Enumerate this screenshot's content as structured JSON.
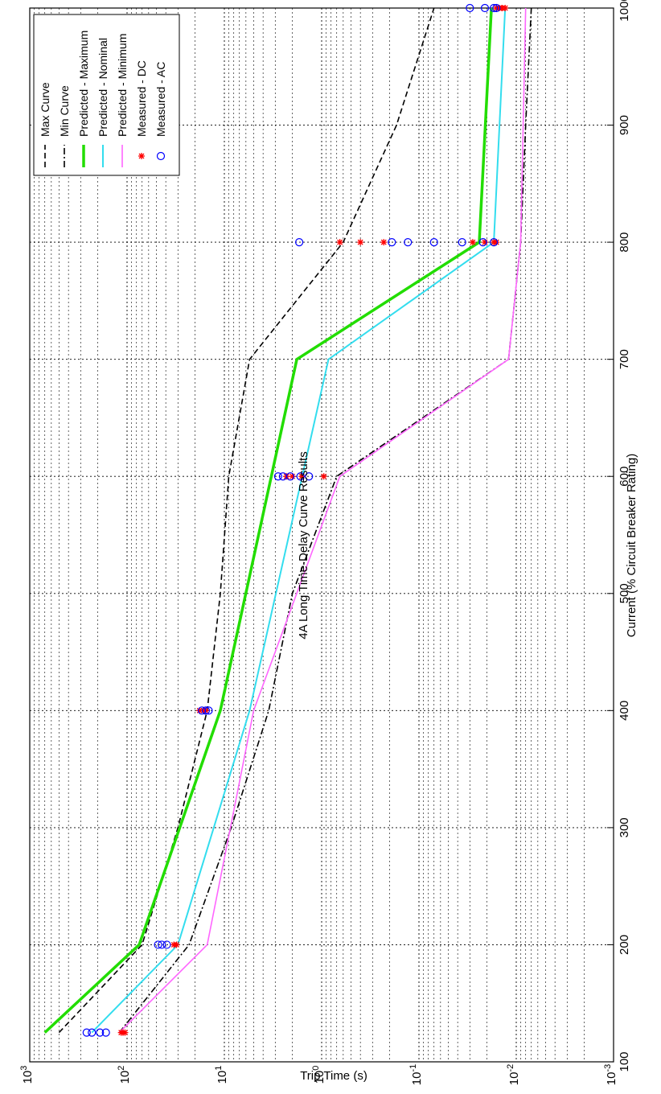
{
  "chart_data": {
    "type": "line",
    "title": "4A Long Time-Delay Curve Results",
    "xlabel": "Current (% Circuit Breaker Rating)",
    "ylabel": "Trip Time (s)",
    "xlim": [
      100,
      1000
    ],
    "ylim": [
      0.001,
      1000
    ],
    "yscale": "log",
    "x_ticks": [
      "100",
      "200",
      "300",
      "400",
      "500",
      "600",
      "700",
      "800",
      "900",
      "1000"
    ],
    "y_ticks": [
      {
        "base": "10",
        "exp": "3",
        "value": 1000
      },
      {
        "base": "10",
        "exp": "2",
        "value": 100
      },
      {
        "base": "10",
        "exp": "1",
        "value": 10
      },
      {
        "base": "10",
        "exp": "0",
        "value": 1
      },
      {
        "base": "10",
        "exp": "-1",
        "value": 0.1
      },
      {
        "base": "10",
        "exp": "-2",
        "value": 0.01
      },
      {
        "base": "10",
        "exp": "-3",
        "value": 0.001
      }
    ],
    "grid": true,
    "orientation": "rotated-90-counterclockwise",
    "legend_position": "top-left",
    "series": [
      {
        "name": "Max Curve",
        "style": "dashed",
        "color": "#000000",
        "x": [
          125,
          200,
          300,
          400,
          500,
          600,
          700,
          800,
          900,
          1000
        ],
        "y": [
          500,
          70,
          30,
          15,
          11,
          9,
          5.5,
          0.6,
          0.17,
          0.07
        ]
      },
      {
        "name": "Min Curve",
        "style": "dashdot",
        "color": "#000000",
        "x": [
          125,
          200,
          300,
          400,
          500,
          600,
          700,
          800,
          900,
          1000
        ],
        "y": [
          120,
          23,
          8.5,
          3.5,
          2.0,
          0.7,
          0.012,
          0.009,
          0.008,
          0.007
        ]
      },
      {
        "name": "Predicted - Maximum",
        "style": "solid",
        "color": "#22dd00",
        "x": [
          125,
          200,
          400,
          700,
          800,
          1000
        ],
        "y": [
          700,
          75,
          11,
          1.8,
          0.024,
          0.018
        ]
      },
      {
        "name": "Predicted - Nominal",
        "style": "solid",
        "color": "#33ddee",
        "x": [
          125,
          200,
          400,
          700,
          800,
          1000
        ],
        "y": [
          230,
          30,
          5.5,
          0.85,
          0.017,
          0.013
        ]
      },
      {
        "name": "Predicted - Minimum",
        "style": "solid",
        "color": "#ff66ff",
        "x": [
          125,
          200,
          400,
          600,
          700,
          800,
          1000
        ],
        "y": [
          120,
          15,
          5,
          0.65,
          0.012,
          0.009,
          0.008
        ]
      },
      {
        "name": "Measured - DC",
        "style": "marker-plus",
        "color": "#ff0000",
        "x": [
          125,
          125,
          125,
          200,
          200,
          400,
          400,
          400,
          600,
          600,
          600,
          600,
          800,
          800,
          800,
          800,
          800,
          800,
          800,
          1000,
          1000,
          1000,
          1000
        ],
        "y": [
          115,
          110,
          105,
          33,
          31,
          18,
          16.5,
          15.5,
          2.3,
          1.6,
          0.95,
          2.0,
          0.65,
          0.4,
          0.23,
          0.028,
          0.021,
          0.017,
          0.016,
          0.016,
          0.015,
          0.014,
          0.013
        ]
      },
      {
        "name": "Measured - AC",
        "style": "marker-circle",
        "color": "#0000ff",
        "x": [
          125,
          125,
          125,
          125,
          200,
          200,
          200,
          400,
          400,
          400,
          600,
          600,
          600,
          600,
          600,
          800,
          800,
          800,
          800,
          800,
          800,
          800,
          1000,
          1000,
          1000,
          1000
        ],
        "y": [
          260,
          230,
          190,
          165,
          48,
          44,
          39,
          17,
          15.5,
          14.5,
          2.8,
          2.5,
          2.1,
          1.65,
          1.35,
          1.7,
          0.19,
          0.13,
          0.07,
          0.036,
          0.022,
          0.017,
          0.03,
          0.021,
          0.017,
          0.016
        ]
      }
    ]
  }
}
